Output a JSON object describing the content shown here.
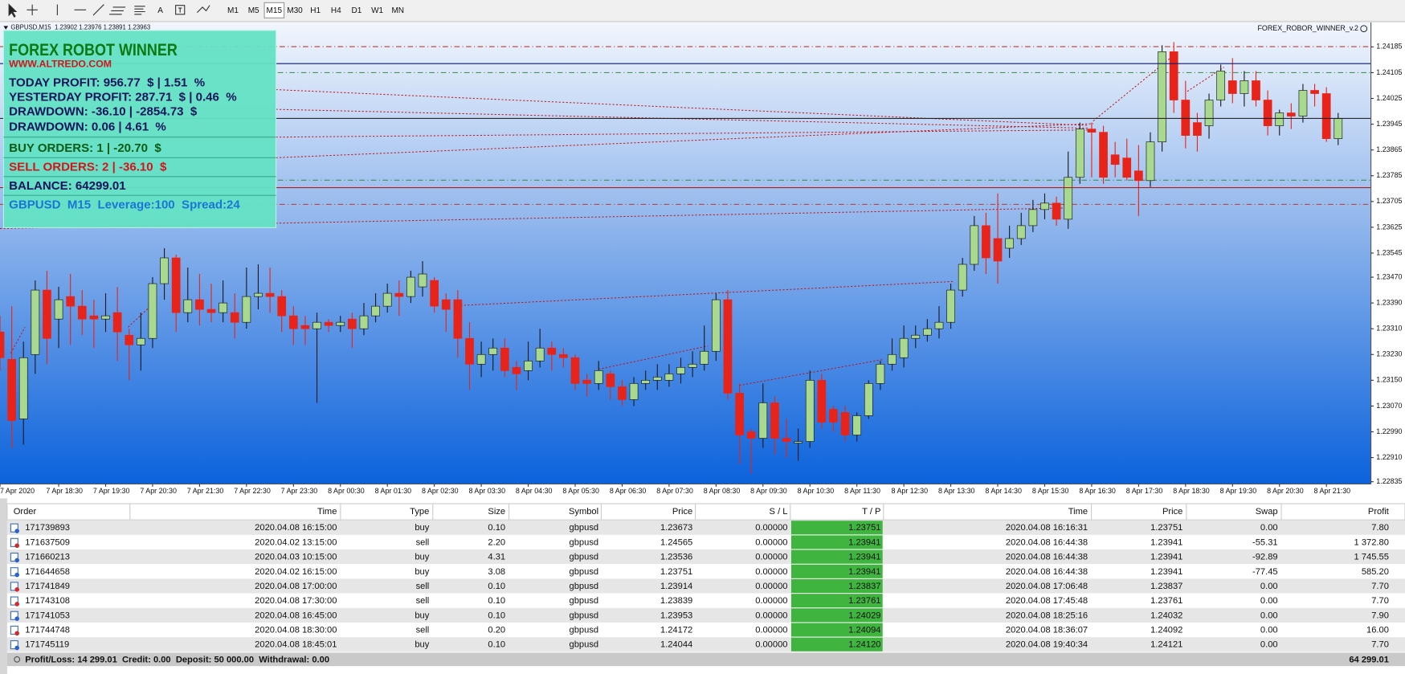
{
  "toolbar": {
    "timeframes": [
      "M1",
      "M5",
      "M15",
      "M30",
      "H1",
      "H4",
      "D1",
      "W1",
      "MN"
    ],
    "active": "M15"
  },
  "chart_header": "GBPUSD,M15  1.23902 1.23976 1.23891 1.23963",
  "indicator_name": "FOREX_ROBOR_WINNER_v.2",
  "panel": {
    "title": "FOREX ROBOT WINNER",
    "url": "WWW.ALTREDO.COM",
    "today_profit": "TODAY PROFIT: 956.77  $ | 1.51  %",
    "yesterday_profit": "YESTERDAY PROFIT: 287.71  $ | 0.46  %",
    "drawdown_money": "DRAWDOWN: -36.10 | -2854.73  $",
    "drawdown_percent": "DRAWDOWN: 0.06 | 4.61  %",
    "buy_orders": "BUY ORDERS: 1 | -20.70  $",
    "sell_orders": "SELL ORDERS: 2 | -36.10  $",
    "balance": "BALANCE: 64299.01",
    "info": "GBPUSD  M15  Leverage:100  Spread:24"
  },
  "chart_data": {
    "type": "candlestick",
    "up_color": "#a9d88f",
    "down_color": "#e8241a",
    "categories": [
      "7 Apr 2020",
      null,
      null,
      null,
      null,
      "7 Apr 18:30",
      null,
      null,
      null,
      "7 Apr 19:30",
      null,
      null,
      null,
      "7 Apr 20:30",
      null,
      null,
      null,
      "7 Apr 21:30",
      null,
      null,
      null,
      "7 Apr 22:30",
      null,
      null,
      null,
      "7 Apr 23:30",
      null,
      null,
      null,
      "8 Apr 00:30",
      null,
      null,
      null,
      "8 Apr 01:30",
      null,
      null,
      null,
      "8 Apr 02:30",
      null,
      null,
      null,
      "8 Apr 03:30",
      null,
      null,
      null,
      "8 Apr 04:30",
      null,
      null,
      null,
      "8 Apr 05:30",
      null,
      null,
      null,
      "8 Apr 06:30",
      null,
      null,
      null,
      "8 Apr 07:30",
      null,
      null,
      null,
      "8 Apr 08:30",
      null,
      null,
      null,
      "8 Apr 09:30",
      null,
      null,
      null,
      "8 Apr 10:30",
      null,
      null,
      null,
      "8 Apr 11:30",
      null,
      null,
      null,
      "8 Apr 12:30",
      null,
      null,
      null,
      "8 Apr 13:30",
      null,
      null,
      null,
      "8 Apr 14:30",
      null,
      null,
      null,
      "8 Apr 15:30",
      null,
      null,
      null,
      "8 Apr 16:30",
      null,
      null,
      null,
      "8 Apr 17:30",
      null,
      null,
      null,
      "8 Apr 18:30",
      null,
      null,
      null,
      "8 Apr 19:30",
      null,
      null,
      null,
      "8 Apr 20:30",
      null,
      null,
      null,
      "8 Apr 21:30",
      null
    ],
    "open": [
      1.233,
      1.23215,
      1.2303,
      1.2323,
      1.2343,
      1.2334,
      1.2341,
      1.2338,
      1.2335,
      1.2334,
      1.2336,
      1.2329,
      1.2326,
      1.2328,
      1.2345,
      1.2353,
      1.2336,
      1.234,
      1.2337,
      1.2336,
      1.2336,
      1.2333,
      1.2341,
      1.2342,
      1.2341,
      1.2335,
      1.2332,
      1.2331,
      1.2333,
      1.2332,
      1.2334,
      1.2331,
      1.2335,
      1.2338,
      1.2342,
      1.2341,
      1.2344,
      1.2346,
      1.234,
      1.234,
      1.2328,
      1.232,
      1.2323,
      1.2325,
      1.2319,
      1.2318,
      1.2321,
      1.2325,
      1.2323,
      1.2322,
      1.2315,
      1.2314,
      1.2317,
      1.2313,
      1.2309,
      1.2314,
      1.2315,
      1.2315,
      1.2317,
      1.2319,
      1.232,
      1.2324,
      1.234,
      1.2311,
      1.2299,
      1.2297,
      1.2308,
      1.2297,
      1.22955,
      1.2296,
      1.2315,
      1.2306,
      1.2305,
      1.2298,
      1.2304,
      1.2314,
      1.232,
      1.2322,
      1.2328,
      1.2329,
      1.2331,
      1.2333,
      1.2343,
      1.2351,
      1.2363,
      1.2359,
      1.2356,
      1.2359,
      1.2363,
      1.2368,
      1.237,
      1.2365,
      1.2378,
      1.2393,
      1.2392,
      1.2385,
      1.2384,
      1.238,
      1.2377,
      1.2389,
      1.2417,
      1.2402,
      1.2395,
      1.2394,
      1.2402,
      1.2408,
      1.2404,
      1.2408,
      1.2402,
      1.2394,
      1.2398,
      1.2397,
      1.2405,
      1.2404,
      1.239
    ],
    "high": [
      1.2335,
      1.2338,
      1.2327,
      1.2346,
      1.2349,
      1.2344,
      1.2348,
      1.2343,
      1.234,
      1.2342,
      1.2344,
      1.2331,
      1.2336,
      1.2347,
      1.2356,
      1.2354,
      1.235,
      1.2348,
      1.2345,
      1.2346,
      1.2342,
      1.235,
      1.2351,
      1.235,
      1.2343,
      1.2338,
      1.2335,
      1.2336,
      1.2334,
      1.2335,
      1.2336,
      1.2339,
      1.2342,
      1.2345,
      1.2346,
      1.2349,
      1.2352,
      1.2347,
      1.2342,
      1.2343,
      1.2333,
      1.2327,
      1.2328,
      1.2328,
      1.2321,
      1.2327,
      1.2331,
      1.2327,
      1.2325,
      1.2323,
      1.2317,
      1.2321,
      1.2318,
      1.2315,
      1.2316,
      1.2318,
      1.232,
      1.232,
      1.2322,
      1.2324,
      1.2332,
      1.2342,
      1.2343,
      1.2314,
      1.23,
      1.2314,
      1.231,
      1.2303,
      1.23,
      1.2318,
      1.2317,
      1.2307,
      1.2307,
      1.2305,
      1.2315,
      1.2321,
      1.2328,
      1.2332,
      1.2332,
      1.2334,
      1.2338,
      1.2345,
      1.2353,
      1.2366,
      1.2367,
      1.2373,
      1.2363,
      1.2367,
      1.2371,
      1.2373,
      1.2372,
      1.2386,
      1.2395,
      1.2395,
      1.2394,
      1.2389,
      1.239,
      1.2388,
      1.2392,
      1.2419,
      1.242,
      1.2408,
      1.2398,
      1.2404,
      1.2413,
      1.2415,
      1.2411,
      1.2411,
      1.2405,
      1.2399,
      1.2401,
      1.2407,
      1.2407,
      1.2406,
      1.2398
    ],
    "low": [
      1.2318,
      1.2294,
      1.2295,
      1.2317,
      1.232,
      1.2325,
      1.2326,
      1.2329,
      1.2325,
      1.233,
      1.2321,
      1.2315,
      1.2318,
      1.2325,
      1.234,
      1.233,
      1.2333,
      1.2332,
      1.2333,
      1.2333,
      1.2328,
      1.2331,
      1.2337,
      1.2336,
      1.233,
      1.2326,
      1.2326,
      1.2308,
      1.233,
      1.233,
      1.2325,
      1.2329,
      1.2333,
      1.2336,
      1.2335,
      1.2339,
      1.2341,
      1.2336,
      1.233,
      1.2322,
      1.2312,
      1.2316,
      1.2318,
      1.2316,
      1.2312,
      1.2315,
      1.2319,
      1.2318,
      1.2319,
      1.2312,
      1.231,
      1.2312,
      1.2309,
      1.2307,
      1.2307,
      1.2312,
      1.2312,
      1.2313,
      1.2314,
      1.2316,
      1.2318,
      1.2321,
      1.2309,
      1.2289,
      1.2286,
      1.2294,
      1.2292,
      1.2291,
      1.229,
      1.2294,
      1.23,
      1.2299,
      1.2296,
      1.2296,
      1.2303,
      1.2312,
      1.2318,
      1.2319,
      1.2325,
      1.2327,
      1.2328,
      1.2331,
      1.2341,
      1.2349,
      1.2348,
      1.2345,
      1.2353,
      1.2357,
      1.2361,
      1.2365,
      1.2363,
      1.2362,
      1.2376,
      1.2378,
      1.2376,
      1.2378,
      1.2377,
      1.2366,
      1.2375,
      1.2386,
      1.2398,
      1.2387,
      1.2386,
      1.239,
      1.24,
      1.2401,
      1.24,
      1.24,
      1.2391,
      1.2391,
      1.2393,
      1.2395,
      1.24,
      1.2389,
      1.2388
    ],
    "close": [
      1.2322,
      1.23025,
      1.2322,
      1.2343,
      1.2328,
      1.234,
      1.2338,
      1.2334,
      1.2334,
      1.2335,
      1.233,
      1.2326,
      1.2328,
      1.2345,
      1.2353,
      1.2336,
      1.234,
      1.2337,
      1.2336,
      1.2339,
      1.2333,
      1.2341,
      1.2342,
      1.2341,
      1.2335,
      1.2331,
      1.2331,
      1.2333,
      1.2332,
      1.2333,
      1.2331,
      1.2335,
      1.2338,
      1.2342,
      1.2341,
      1.2347,
      1.2348,
      1.2338,
      1.2337,
      1.2328,
      1.232,
      1.2323,
      1.2325,
      1.2318,
      1.2317,
      1.2321,
      1.2325,
      1.2323,
      1.2322,
      1.2314,
      1.2314,
      1.2318,
      1.2313,
      1.2309,
      1.2314,
      1.2315,
      1.2316,
      1.2317,
      1.2319,
      1.232,
      1.2324,
      1.234,
      1.2311,
      1.2298,
      1.2297,
      1.2308,
      1.2297,
      1.2296,
      1.2296,
      1.2315,
      1.2302,
      1.2302,
      1.2298,
      1.2304,
      1.2314,
      1.232,
      1.2323,
      1.2328,
      1.2329,
      1.2331,
      1.2333,
      1.2343,
      1.2351,
      1.2363,
      1.2353,
      1.2352,
      1.2359,
      1.2363,
      1.2368,
      1.237,
      1.2365,
      1.2378,
      1.2393,
      1.2392,
      1.2378,
      1.2382,
      1.2378,
      1.2377,
      1.2389,
      1.2417,
      1.2402,
      1.2391,
      1.2391,
      1.2402,
      1.2411,
      1.2404,
      1.2408,
      1.2402,
      1.2394,
      1.2398,
      1.2397,
      1.2405,
      1.2404,
      1.239,
      1.23963
    ],
    "ylim": [
      1.22828,
      1.24261
    ],
    "yticks": [
      1.24185,
      1.24105,
      1.24025,
      1.23945,
      1.23865,
      1.23785,
      1.23705,
      1.23625,
      1.23545,
      {
        "value": 1.2347,
        "label": "1.23470"
      },
      {
        "value": 1.2339,
        "label": "1.23390"
      },
      {
        "value": 1.2331,
        "label": "1.23310"
      },
      {
        "value": 1.2323,
        "label": "1.23230"
      },
      {
        "value": 1.2315,
        "label": "1.23150"
      },
      {
        "value": 1.2307,
        "label": "1.23070"
      },
      {
        "value": 1.2299,
        "label": "1.22990"
      },
      {
        "value": 1.2291,
        "label": "1.22910"
      },
      1.22835
    ],
    "price_lines": [
      {
        "value": 1.24133,
        "color": "#0c1a6e"
      },
      {
        "value": 1.23963,
        "color": "#111111"
      },
      {
        "value": 1.23748,
        "color": "#b51d1d"
      }
    ]
  },
  "table": {
    "columns": [
      "Order",
      "Time",
      "Type",
      "Size",
      "Symbol",
      "Price",
      "S / L",
      "T / P",
      "Time",
      "Price",
      "Swap",
      "Profit"
    ],
    "rows": [
      [
        "171739893",
        "2020.04.08 16:15:00",
        "buy",
        "0.10",
        "gbpusd",
        "1.23673",
        "0.00000",
        "1.23751",
        "2020.04.08 16:16:31",
        "1.23751",
        "0.00",
        "7.80"
      ],
      [
        "171637509",
        "2020.04.02 13:15:00",
        "sell",
        "2.20",
        "gbpusd",
        "1.24565",
        "0.00000",
        "1.23941",
        "2020.04.08 16:44:38",
        "1.23941",
        "-55.31",
        "1 372.80"
      ],
      [
        "171660213",
        "2020.04.03 10:15:00",
        "buy",
        "4.31",
        "gbpusd",
        "1.23536",
        "0.00000",
        "1.23941",
        "2020.04.08 16:44:38",
        "1.23941",
        "-92.89",
        "1 745.55"
      ],
      [
        "171644658",
        "2020.04.02 16:15:00",
        "buy",
        "3.08",
        "gbpusd",
        "1.23751",
        "0.00000",
        "1.23941",
        "2020.04.08 16:44:38",
        "1.23941",
        "-77.45",
        "585.20"
      ],
      [
        "171741849",
        "2020.04.08 17:00:00",
        "sell",
        "0.10",
        "gbpusd",
        "1.23914",
        "0.00000",
        "1.23837",
        "2020.04.08 17:06:48",
        "1.23837",
        "0.00",
        "7.70"
      ],
      [
        "171743108",
        "2020.04.08 17:30:00",
        "sell",
        "0.10",
        "gbpusd",
        "1.23839",
        "0.00000",
        "1.23761",
        "2020.04.08 17:45:48",
        "1.23761",
        "0.00",
        "7.70"
      ],
      [
        "171741053",
        "2020.04.08 16:45:00",
        "buy",
        "0.10",
        "gbpusd",
        "1.23953",
        "0.00000",
        "1.24029",
        "2020.04.08 18:25:16",
        "1.24032",
        "0.00",
        "7.90"
      ],
      [
        "171744748",
        "2020.04.08 18:30:00",
        "sell",
        "0.20",
        "gbpusd",
        "1.24172",
        "0.00000",
        "1.24094",
        "2020.04.08 18:36:07",
        "1.24092",
        "0.00",
        "16.00"
      ],
      [
        "171745119",
        "2020.04.08 18:45:01",
        "buy",
        "0.10",
        "gbpusd",
        "1.24044",
        "0.00000",
        "1.24120",
        "2020.04.08 19:40:34",
        "1.24121",
        "0.00",
        "7.70"
      ]
    ],
    "footer": "Profit/Loss: 14 299.01  Credit: 0.00  Deposit: 50 000.00  Withdrawal: 0.00",
    "footer_total": "64 299.01"
  }
}
